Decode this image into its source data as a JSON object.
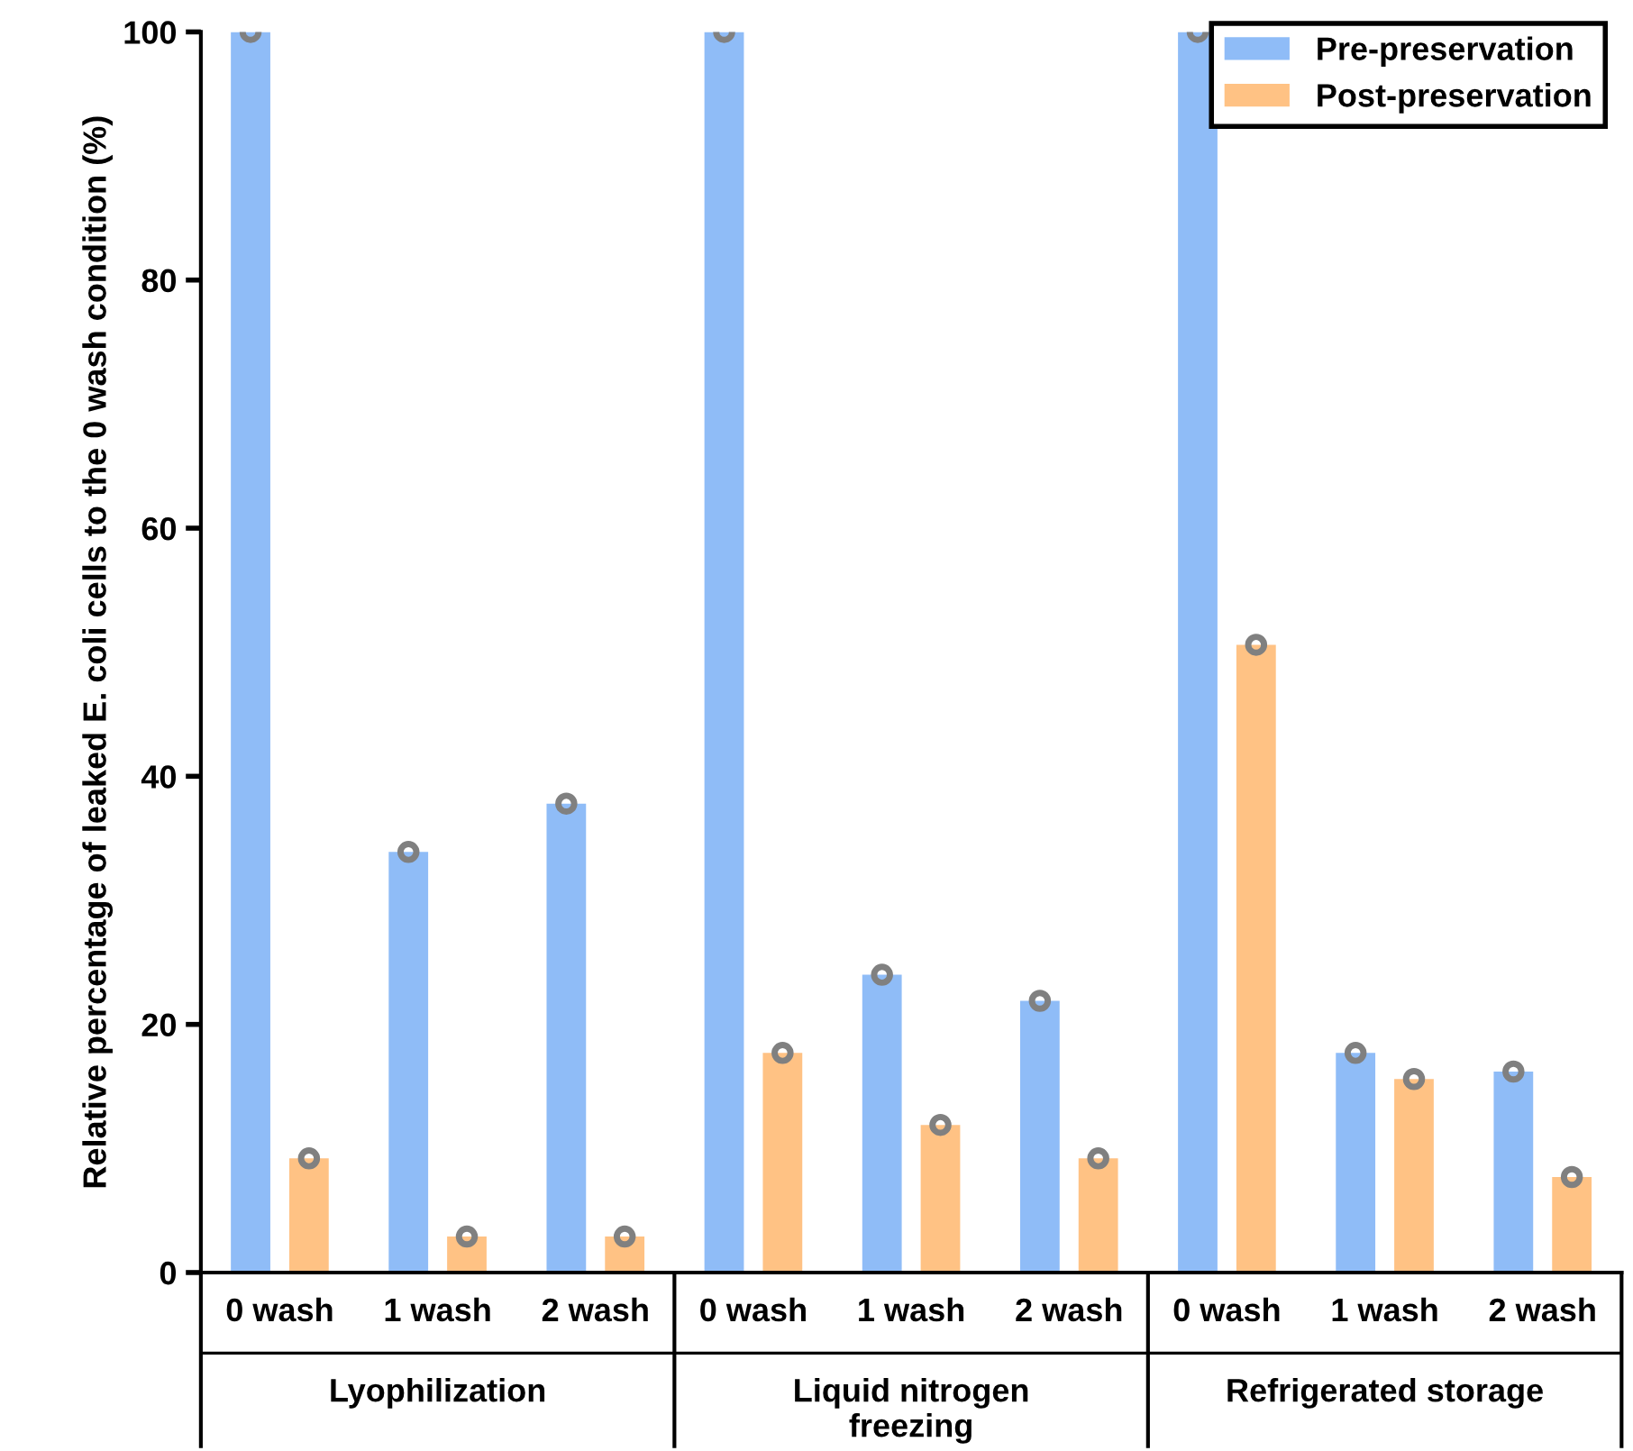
{
  "chart_data": {
    "type": "bar",
    "ylabel": "Relative percentage of leaked E. coli cells to the 0 wash condition (%)",
    "categories": [
      "0 wash",
      "1 wash",
      "2 wash",
      "0 wash",
      "1 wash",
      "2 wash",
      "0 wash",
      "1 wash",
      "2 wash"
    ],
    "annotations": [
      "Lyophilization",
      "Liquid nitrogen\nfreezing",
      "Refrigerated storage"
    ],
    "series": [
      {
        "name": "Pre-preservation",
        "color": "#8fbcf7",
        "values": [
          100,
          33.9,
          37.8,
          100,
          24.0,
          21.9,
          100,
          17.7,
          16.2
        ]
      },
      {
        "name": "Post-preservation",
        "color": "#ffc284",
        "values": [
          9.2,
          2.9,
          2.9,
          17.7,
          11.9,
          9.2,
          50.6,
          15.6,
          7.7
        ]
      },
      {
        "type": "scatter",
        "marker": "circle",
        "color": "#808080",
        "values": [
          100,
          33.9,
          37.8,
          100,
          24.0,
          21.9,
          100,
          17.7,
          16.2
        ]
      },
      {
        "type": "scatter",
        "marker": "circle",
        "color": "#808080",
        "values": [
          9.2,
          2.9,
          2.9,
          17.7,
          11.9,
          9.2,
          50.6,
          15.6,
          7.7
        ]
      }
    ],
    "ylim": [
      0,
      100
    ],
    "yticks": [
      0,
      20,
      40,
      60,
      80,
      100
    ],
    "grid": false,
    "legend": "top right"
  }
}
